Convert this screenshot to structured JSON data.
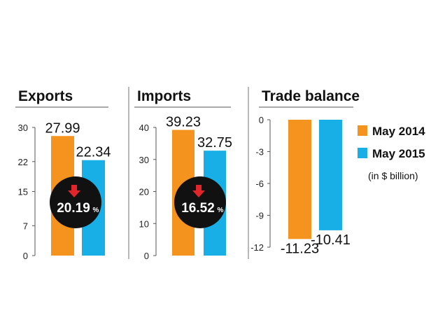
{
  "colors": {
    "may2014": "#f5931f",
    "may2015": "#18aee6",
    "badge": "#111111",
    "arrow": "#e0252b"
  },
  "chart_data": [
    {
      "type": "bar",
      "title": "Exports",
      "series": [
        {
          "name": "May 2014",
          "values": [
            27.99
          ]
        },
        {
          "name": "May 2015",
          "values": [
            22.34
          ]
        }
      ],
      "data_labels": [
        "27.99",
        "22.34"
      ],
      "ylim": [
        0,
        30
      ],
      "yticks": [
        0,
        7,
        15,
        22,
        30
      ],
      "change": {
        "value": "20.19",
        "unit": "%",
        "direction": "down"
      }
    },
    {
      "type": "bar",
      "title": "Imports",
      "series": [
        {
          "name": "May 2014",
          "values": [
            39.23
          ]
        },
        {
          "name": "May 2015",
          "values": [
            32.75
          ]
        }
      ],
      "data_labels": [
        "39.23",
        "32.75"
      ],
      "ylim": [
        0,
        40
      ],
      "yticks": [
        0,
        10,
        20,
        30,
        40
      ],
      "change": {
        "value": "16.52",
        "unit": "%",
        "direction": "down"
      }
    },
    {
      "type": "bar",
      "title": "Trade balance",
      "series": [
        {
          "name": "May 2014",
          "values": [
            -11.23
          ]
        },
        {
          "name": "May 2015",
          "values": [
            -10.41
          ]
        }
      ],
      "data_labels": [
        "-11.23",
        "-10.41"
      ],
      "ylim": [
        -12,
        0
      ],
      "yticks": [
        0,
        -3,
        -6,
        -9,
        -12
      ]
    }
  ],
  "legend": {
    "items": [
      {
        "label": "May 2014",
        "color": "#f5931f"
      },
      {
        "label": "May 2015",
        "color": "#18aee6"
      }
    ],
    "note": "(in $ billion)",
    "placement": "right"
  }
}
